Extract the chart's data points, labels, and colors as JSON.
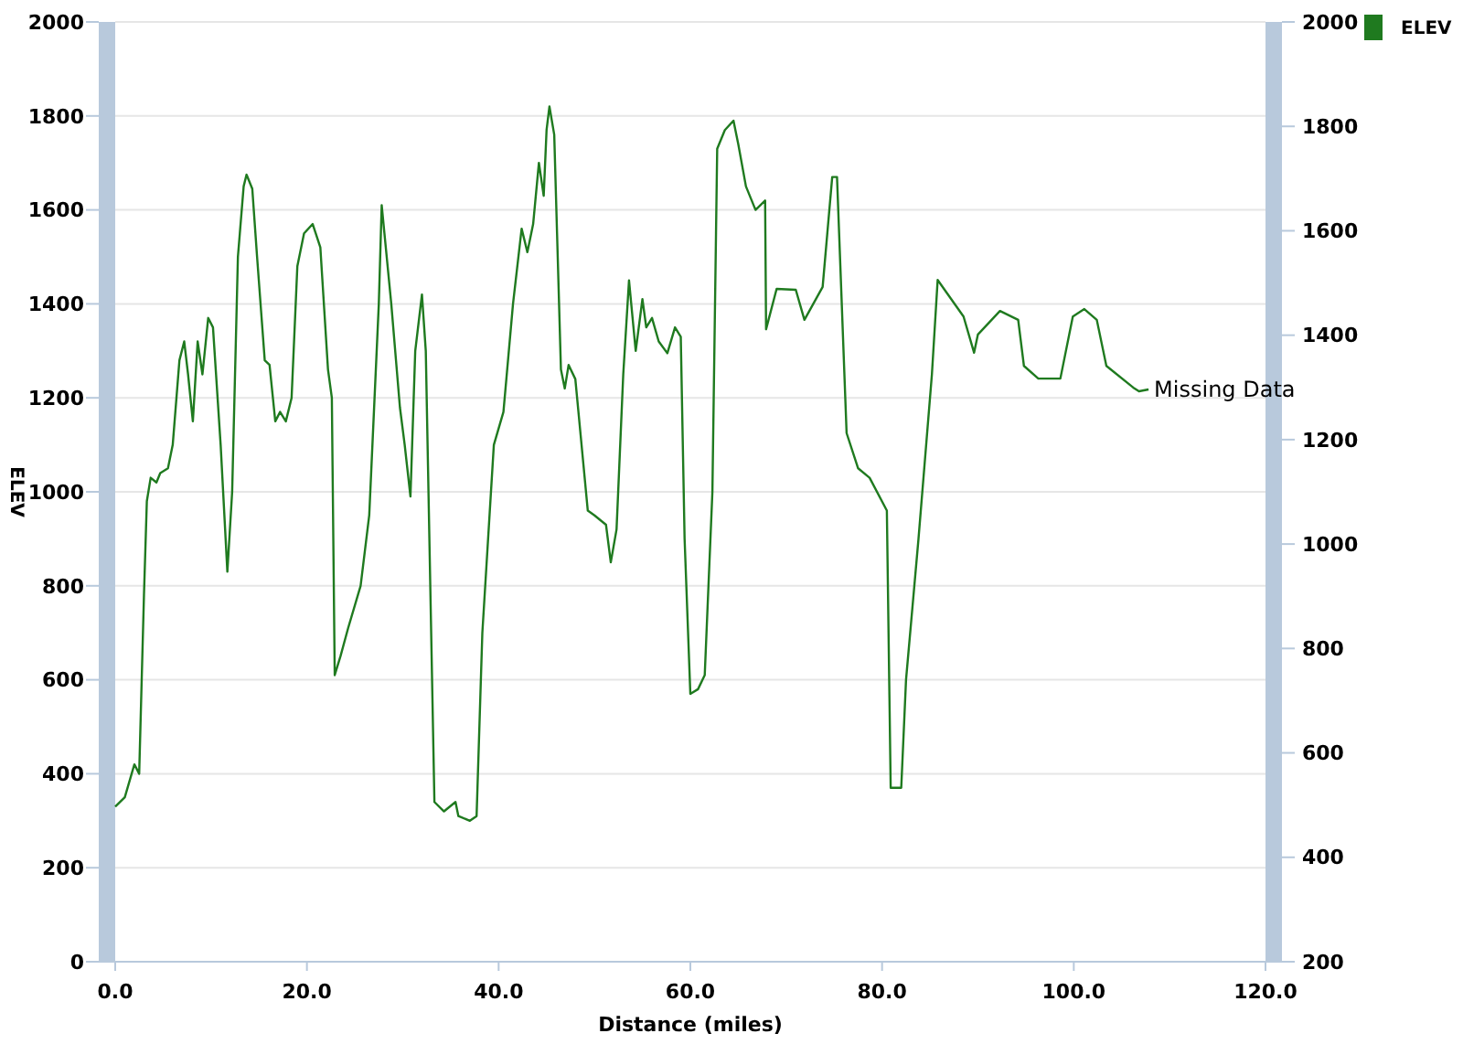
{
  "chart_data": {
    "type": "line",
    "xlabel": "Distance (miles)",
    "ylabel": "ELEV",
    "xlim": [
      0,
      120
    ],
    "xticks": [
      {
        "value": 0,
        "label": "0.0"
      },
      {
        "value": 20,
        "label": "20.0"
      },
      {
        "value": 40,
        "label": "40.0"
      },
      {
        "value": 60,
        "label": "60.0"
      },
      {
        "value": 80,
        "label": "80.0"
      },
      {
        "value": 100,
        "label": "100.0"
      },
      {
        "value": 120,
        "label": "120.0"
      }
    ],
    "ylim": [
      0,
      2000
    ],
    "yticks": [
      0,
      200,
      400,
      600,
      800,
      1000,
      1200,
      1400,
      1600,
      1800,
      2000
    ],
    "y2lim": [
      200,
      2000
    ],
    "y2ticks": [
      200,
      400,
      600,
      800,
      1000,
      1200,
      1400,
      1600,
      1800,
      2000
    ],
    "grid": "y",
    "legend": "top right",
    "marker": "none",
    "line_style": "solid",
    "annotations": [
      {
        "text": "Missing Data",
        "x": 107.8,
        "y": 1218
      }
    ],
    "series": [
      {
        "name": "ELEV",
        "color": "#1f7a1f",
        "x": [
          0,
          1,
          2,
          2.5,
          3,
          3.3,
          3.7,
          4.3,
          4.7,
          5.5,
          6,
          6.7,
          7.2,
          7.6,
          8.1,
          8.6,
          9.1,
          9.7,
          10.2,
          11,
          11.7,
          12.2,
          12.8,
          13.4,
          13.7,
          14.3,
          14.8,
          15.6,
          16.1,
          16.7,
          17.2,
          17.8,
          18.4,
          19,
          19.7,
          20.6,
          21.4,
          22.2,
          22.6,
          22.9,
          23.5,
          24.3,
          25.6,
          26.5,
          27.5,
          27.8,
          28.8,
          29.7,
          30.2,
          30.8,
          31.3,
          32,
          32.4,
          33.3,
          34.3,
          35.5,
          35.8,
          37,
          37.7,
          38.3,
          39.5,
          40.5,
          41.5,
          42.4,
          43,
          43.6,
          44.2,
          44.7,
          45,
          45.3,
          45.8,
          46.5,
          46.9,
          47.3,
          48,
          49.3,
          50,
          51.2,
          51.7,
          52.3,
          53,
          53.6,
          54.3,
          55,
          55.4,
          56,
          56.7,
          57.6,
          58.4,
          59,
          59.4,
          60,
          60.8,
          61.5,
          62.3,
          62.8,
          63.6,
          64.5,
          65,
          65.8,
          66.8,
          67.8,
          67.9,
          69,
          71,
          71.9,
          73.8,
          74.8,
          75.3,
          76.3,
          77.5,
          78.7,
          80.5,
          80.9,
          82,
          82.5,
          83.8,
          85.2,
          85.8,
          88.5,
          89.6,
          90,
          92.3,
          94.2,
          94.8,
          96.3,
          98.6,
          99.9,
          101.1,
          102.4,
          103.4,
          106.2,
          106.8,
          107.8
        ],
        "values": [
          330,
          350,
          420,
          400,
          780,
          980,
          1030,
          1020,
          1040,
          1050,
          1100,
          1280,
          1320,
          1250,
          1150,
          1320,
          1250,
          1370,
          1350,
          1100,
          830,
          1000,
          1500,
          1650,
          1675,
          1645,
          1500,
          1280,
          1270,
          1150,
          1170,
          1150,
          1200,
          1480,
          1550,
          1570,
          1520,
          1260,
          1200,
          610,
          650,
          710,
          800,
          950,
          1400,
          1610,
          1400,
          1180,
          1100,
          990,
          1300,
          1420,
          1300,
          340,
          320,
          340,
          310,
          300,
          310,
          700,
          1100,
          1170,
          1400,
          1560,
          1510,
          1570,
          1700,
          1630,
          1770,
          1820,
          1760,
          1260,
          1220,
          1270,
          1240,
          960,
          950,
          930,
          850,
          920,
          1250,
          1450,
          1300,
          1410,
          1350,
          1370,
          1320,
          1295,
          1350,
          1330,
          900,
          570,
          580,
          610,
          1000,
          1730,
          1770,
          1790,
          1740,
          1650,
          1600,
          1620,
          1346,
          1432,
          1430,
          1366,
          1436,
          1670,
          1670,
          1125,
          1050,
          1030,
          960,
          370,
          370,
          600,
          900,
          1250,
          1451,
          1373,
          1296,
          1335,
          1385,
          1366,
          1268,
          1241,
          1241,
          1373,
          1389,
          1366,
          1268,
          1222,
          1214,
          1218
        ]
      }
    ]
  }
}
